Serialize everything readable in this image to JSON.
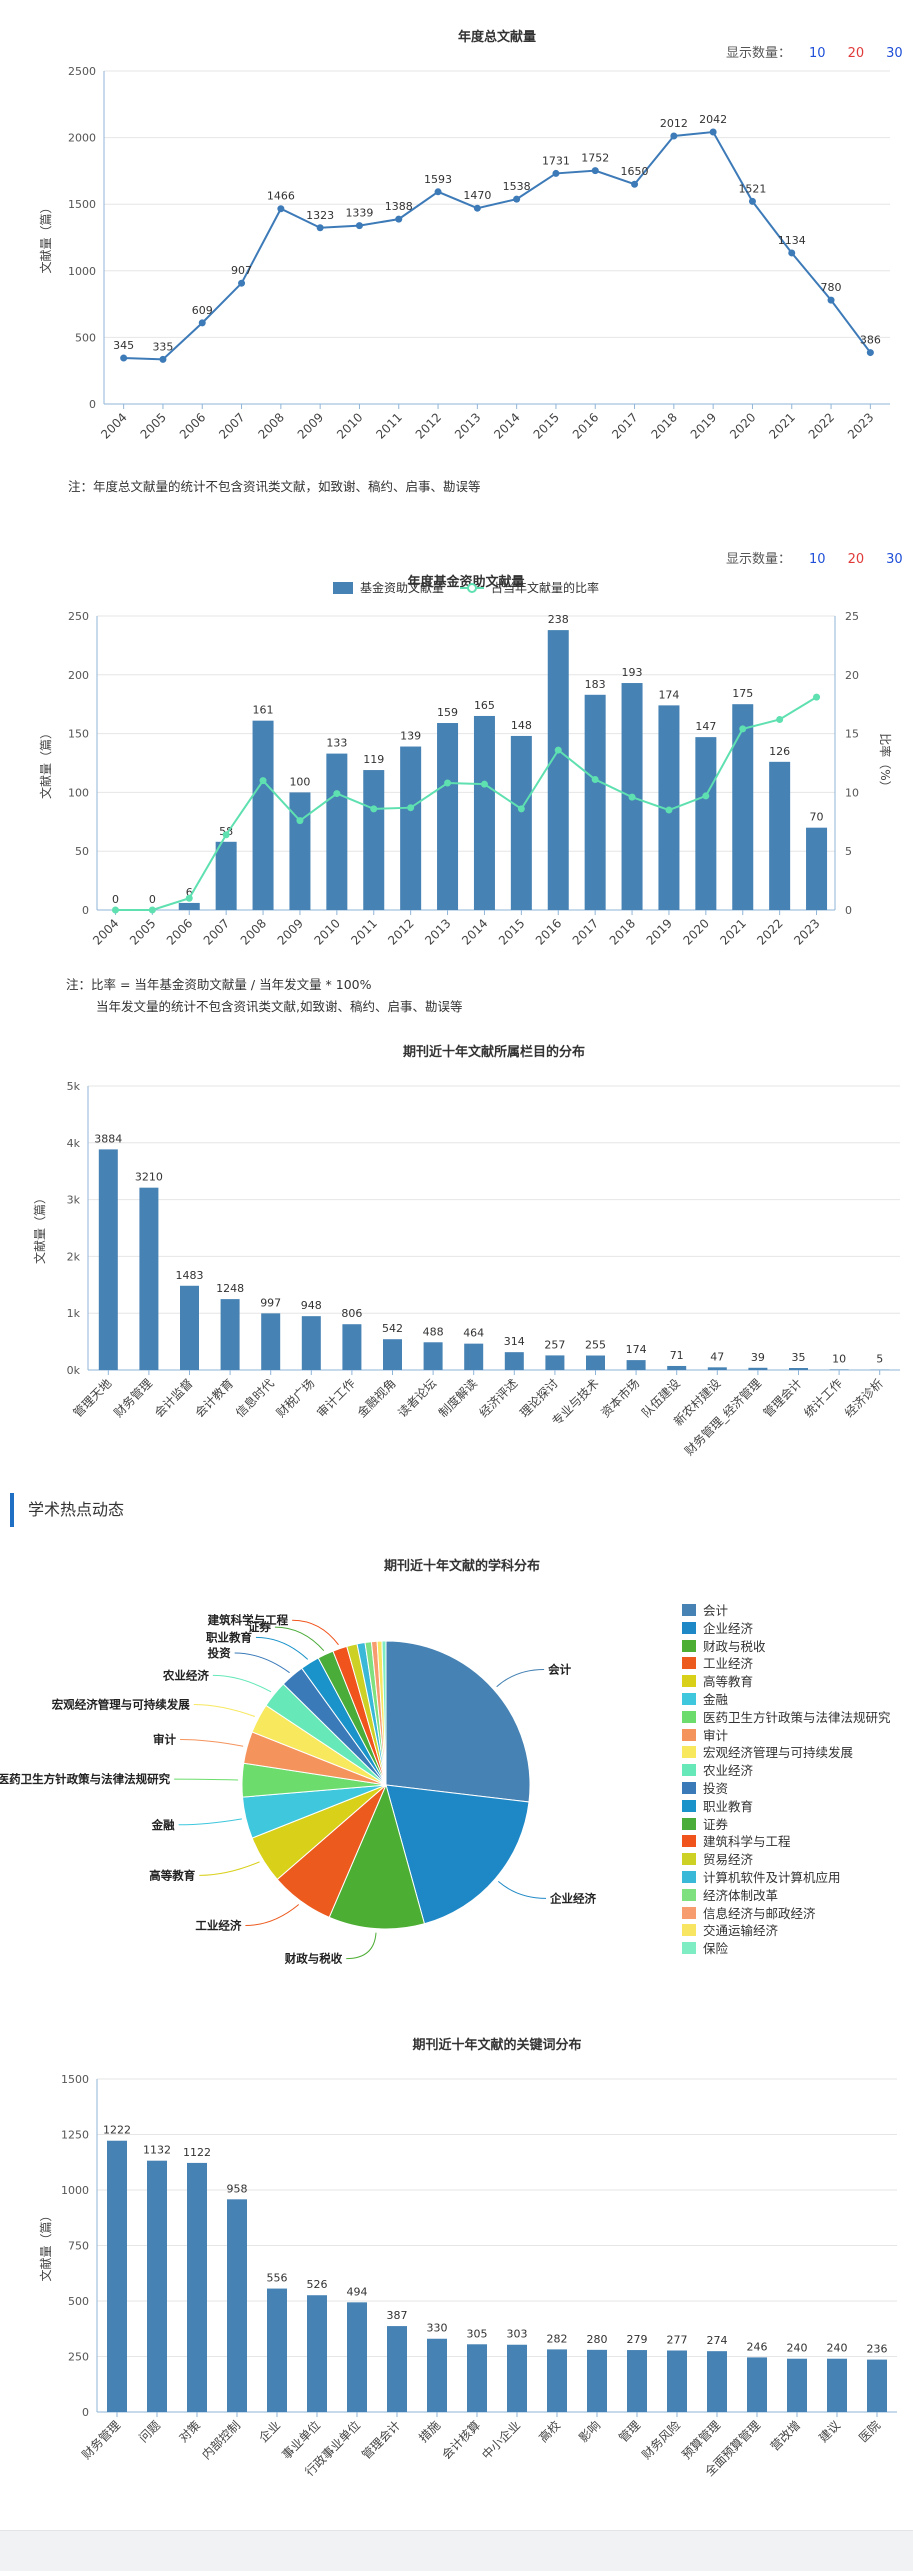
{
  "display_count": {
    "label": "显示数量：",
    "options": [
      "10",
      "20",
      "30"
    ]
  },
  "section": {
    "title": "学术热点动态"
  },
  "notes": {
    "annual": "注：年度总文献量的统计不包含资讯类文献，如致谢、稿约、启事、勘误等",
    "fund_1": "注：比率 = 当年基金资助文献量 / 当年发文量 * 100%",
    "fund_2": "当年发文量的统计不包含资讯类文献,如致谢、稿约、启事、勘误等"
  },
  "chart_data": [
    {
      "id": "annual",
      "type": "line",
      "title": "年度总文献量",
      "ylabel": "文献量（篇）",
      "ylim": [
        0,
        2500
      ],
      "yticks": [
        0,
        500,
        1000,
        1500,
        2000,
        2500
      ],
      "x": [
        "2004",
        "2005",
        "2006",
        "2007",
        "2008",
        "2009",
        "2010",
        "2011",
        "2012",
        "2013",
        "2014",
        "2015",
        "2016",
        "2017",
        "2018",
        "2019",
        "2020",
        "2021",
        "2022",
        "2023"
      ],
      "values": [
        345,
        335,
        609,
        907,
        1466,
        1323,
        1339,
        1388,
        1593,
        1470,
        1538,
        1731,
        1752,
        1650,
        2012,
        2042,
        1521,
        1134,
        780,
        386
      ],
      "color": "#3d7ab8",
      "grid": true
    },
    {
      "id": "fund",
      "type": "bar",
      "title": "年度基金资助文献量",
      "ylabel": "文献量（篇）",
      "y2label": "比率（%）",
      "ylim": [
        0,
        250
      ],
      "yticks": [
        0,
        50,
        100,
        150,
        200,
        250
      ],
      "y2lim": [
        0,
        25
      ],
      "y2ticks": [
        0,
        5,
        10,
        15,
        20,
        25
      ],
      "x": [
        "2004",
        "2005",
        "2006",
        "2007",
        "2008",
        "2009",
        "2010",
        "2011",
        "2012",
        "2013",
        "2014",
        "2015",
        "2016",
        "2017",
        "2018",
        "2019",
        "2020",
        "2021",
        "2022",
        "2023"
      ],
      "series": [
        {
          "name": "基金资助文献量",
          "type": "bar",
          "color": "#4682b4",
          "values": [
            0,
            0,
            6,
            58,
            161,
            100,
            133,
            119,
            139,
            159,
            165,
            148,
            238,
            183,
            193,
            174,
            147,
            175,
            126,
            70
          ]
        },
        {
          "name": "占当年文献量的比率",
          "type": "line",
          "axis": "right",
          "color": "#5ee0b0",
          "values": [
            0,
            0,
            1,
            6.4,
            11,
            7.6,
            9.9,
            8.6,
            8.7,
            10.8,
            10.7,
            8.6,
            13.6,
            11.1,
            9.6,
            8.5,
            9.7,
            15.4,
            16.2,
            18.1
          ]
        }
      ],
      "legend": "top-center",
      "grid": true
    },
    {
      "id": "columns",
      "type": "bar",
      "title": "期刊近十年文献所属栏目的分布",
      "ylabel": "文献量（篇）",
      "ylim": [
        0,
        5000
      ],
      "yticks": [
        0,
        1000,
        2000,
        3000,
        4000,
        5000
      ],
      "ytick_labels": [
        "0k",
        "1k",
        "2k",
        "3k",
        "4k",
        "5k"
      ],
      "categories": [
        "管理天地",
        "财务管理",
        "会计监督",
        "会计教育",
        "信息时代",
        "财税广场",
        "审计工作",
        "金融视角",
        "读者论坛",
        "制度解读",
        "经济评述",
        "理论探讨",
        "专业与技术",
        "资本市场",
        "队伍建设",
        "新农村建设",
        "财务管理_经济管理",
        "管理会计",
        "统计工作",
        "经济诊析"
      ],
      "values": [
        3884,
        3210,
        1483,
        1248,
        997,
        948,
        806,
        542,
        488,
        464,
        314,
        257,
        255,
        174,
        71,
        47,
        39,
        35,
        10,
        5
      ],
      "color": "#4682b4",
      "grid": true
    },
    {
      "id": "subjects",
      "type": "pie",
      "title": "期刊近十年文献的学科分布",
      "labels": [
        "会计",
        "企业经济",
        "财政与税收",
        "工业经济",
        "高等教育",
        "金融",
        "医药卫生方针政策与法律法规研究",
        "审计",
        "宏观经济管理与可持续发展",
        "农业经济",
        "投资",
        "职业教育",
        "证券",
        "建筑科学与工程",
        "贸易经济",
        "计算机软件及计算机应用",
        "经济体制改革",
        "信息经济与邮政经济",
        "交通运输经济",
        "保险"
      ],
      "values": [
        30,
        21,
        12,
        8,
        6,
        5.2,
        4.2,
        4.0,
        3.7,
        3.4,
        3.0,
        2.4,
        2.0,
        1.8,
        1.3,
        1.0,
        0.8,
        0.7,
        0.6,
        0.5
      ],
      "colors": [
        "#4682b4",
        "#1e88c7",
        "#4cae33",
        "#ec5a1e",
        "#d9d01a",
        "#3ec7dd",
        "#6cdd6c",
        "#f5935c",
        "#f7e85e",
        "#66e8b8",
        "#3a7ab9",
        "#1993c9",
        "#4aac39",
        "#f0541c",
        "#cdd126",
        "#3ab8d8",
        "#7fe07f",
        "#f79c6e",
        "#f8e562",
        "#7fedc4"
      ],
      "legend": "right"
    },
    {
      "id": "keywords",
      "type": "bar",
      "title": "期刊近十年文献的关键词分布",
      "ylabel": "文献量（篇）",
      "ylim": [
        0,
        1500
      ],
      "yticks": [
        0,
        250,
        500,
        750,
        1000,
        1250,
        1500
      ],
      "categories": [
        "财务管理",
        "问题",
        "对策",
        "内部控制",
        "企业",
        "事业单位",
        "行政事业单位",
        "管理会计",
        "措施",
        "会计核算",
        "中小企业",
        "高校",
        "影响",
        "管理",
        "财务风险",
        "预算管理",
        "全面预算管理",
        "营改增",
        "建议",
        "医院"
      ],
      "values": [
        1222,
        1132,
        1122,
        958,
        556,
        526,
        494,
        387,
        330,
        305,
        303,
        282,
        280,
        279,
        277,
        274,
        246,
        240,
        240,
        236
      ],
      "color": "#4682b4",
      "grid": true
    }
  ]
}
